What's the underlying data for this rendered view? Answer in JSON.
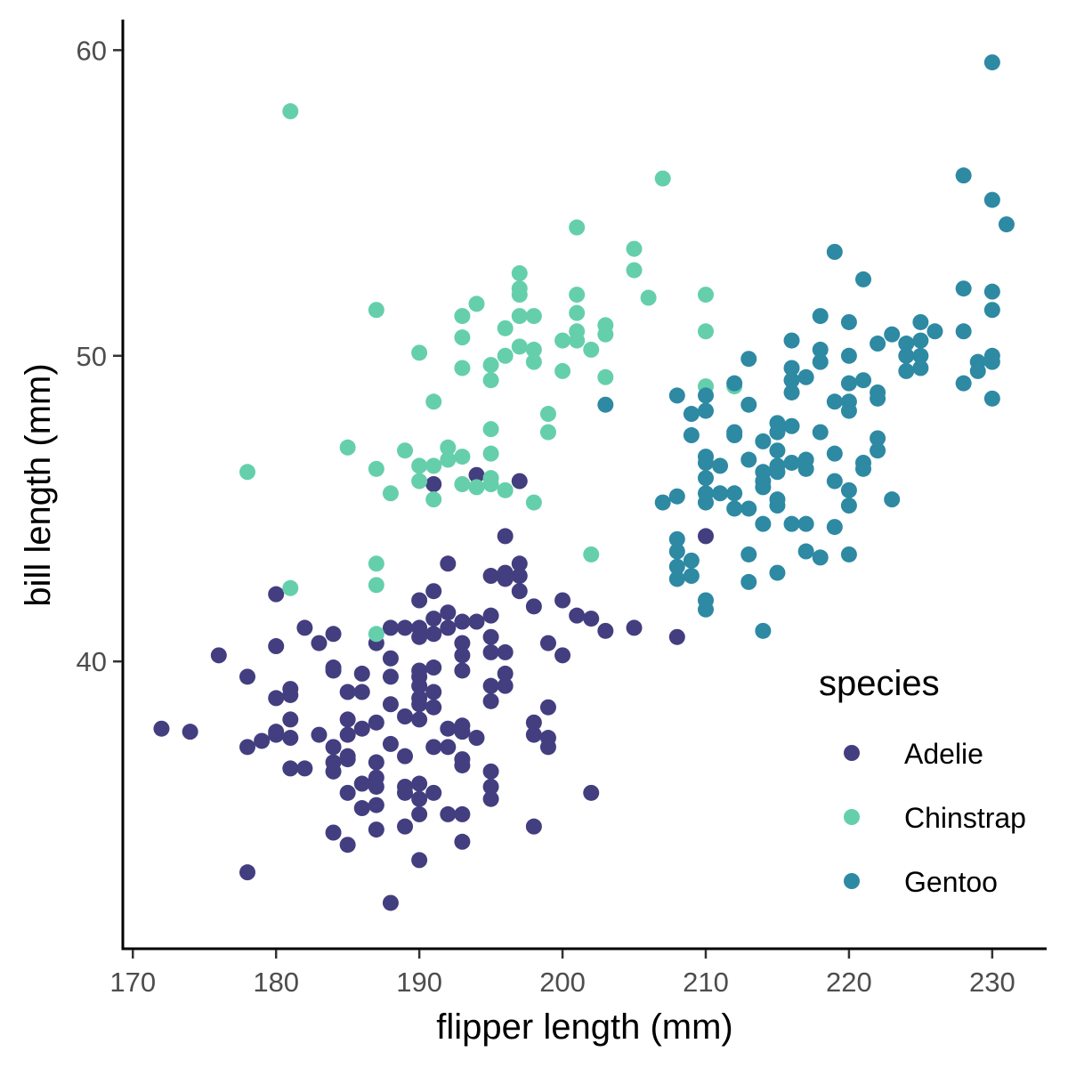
{
  "chart_data": {
    "type": "scatter",
    "xlabel": "flipper length (mm)",
    "ylabel": "bill length (mm)",
    "xlim": [
      169.3,
      233.8
    ],
    "ylim": [
      30.6,
      61.0
    ],
    "x_ticks": [
      170,
      180,
      190,
      200,
      210,
      220,
      230
    ],
    "y_ticks": [
      40,
      50,
      60
    ],
    "grid": false,
    "legend": {
      "title": "species",
      "placement": "right-inside-bottom"
    },
    "series": [
      {
        "name": "Adelie",
        "color": "#433e7f",
        "points": [
          [
            172,
            37.8
          ],
          [
            174,
            37.7
          ],
          [
            176,
            40.2
          ],
          [
            178,
            39.5
          ],
          [
            178,
            37.2
          ],
          [
            178,
            33.1
          ],
          [
            179,
            37.4
          ],
          [
            180,
            42.2
          ],
          [
            180,
            40.5
          ],
          [
            180,
            38.8
          ],
          [
            180,
            37.7
          ],
          [
            180,
            37.6
          ],
          [
            181,
            39.1
          ],
          [
            181,
            38.9
          ],
          [
            181,
            38.1
          ],
          [
            181,
            37.5
          ],
          [
            181,
            36.5
          ],
          [
            182,
            41.1
          ],
          [
            182,
            36.5
          ],
          [
            183,
            40.6
          ],
          [
            183,
            37.6
          ],
          [
            184,
            40.9
          ],
          [
            184,
            39.8
          ],
          [
            184,
            39.7
          ],
          [
            184,
            37.2
          ],
          [
            184,
            36.7
          ],
          [
            184,
            36.4
          ],
          [
            184,
            34.4
          ],
          [
            185,
            39.0
          ],
          [
            185,
            38.1
          ],
          [
            185,
            37.6
          ],
          [
            185,
            36.9
          ],
          [
            185,
            36.8
          ],
          [
            185,
            35.7
          ],
          [
            185,
            34.0
          ],
          [
            186,
            39.6
          ],
          [
            186,
            39.0
          ],
          [
            186,
            37.8
          ],
          [
            186,
            36.0
          ],
          [
            186,
            35.2
          ],
          [
            187,
            40.6
          ],
          [
            187,
            38.0
          ],
          [
            187,
            36.7
          ],
          [
            187,
            36.2
          ],
          [
            187,
            35.9
          ],
          [
            187,
            35.3
          ],
          [
            187,
            34.5
          ],
          [
            188,
            41.1
          ],
          [
            188,
            40.1
          ],
          [
            188,
            39.5
          ],
          [
            188,
            38.6
          ],
          [
            188,
            37.3
          ],
          [
            188,
            32.1
          ],
          [
            189,
            41.1
          ],
          [
            189,
            38.2
          ],
          [
            189,
            36.9
          ],
          [
            189,
            35.9
          ],
          [
            189,
            35.7
          ],
          [
            189,
            34.6
          ],
          [
            190,
            42.0
          ],
          [
            190,
            41.1
          ],
          [
            190,
            40.8
          ],
          [
            190,
            39.7
          ],
          [
            190,
            39.5
          ],
          [
            190,
            39.2
          ],
          [
            190,
            38.8
          ],
          [
            190,
            38.6
          ],
          [
            190,
            38.1
          ],
          [
            190,
            36.0
          ],
          [
            190,
            35.5
          ],
          [
            190,
            35.0
          ],
          [
            190,
            33.5
          ],
          [
            191,
            45.8
          ],
          [
            191,
            42.3
          ],
          [
            191,
            41.4
          ],
          [
            191,
            40.9
          ],
          [
            191,
            39.8
          ],
          [
            191,
            39.0
          ],
          [
            191,
            38.5
          ],
          [
            191,
            37.2
          ],
          [
            191,
            35.7
          ],
          [
            192,
            43.2
          ],
          [
            192,
            41.6
          ],
          [
            192,
            41.1
          ],
          [
            192,
            37.8
          ],
          [
            192,
            37.2
          ],
          [
            192,
            35.0
          ],
          [
            193,
            41.3
          ],
          [
            193,
            40.6
          ],
          [
            193,
            40.2
          ],
          [
            193,
            39.7
          ],
          [
            193,
            37.9
          ],
          [
            193,
            37.7
          ],
          [
            193,
            36.8
          ],
          [
            193,
            36.6
          ],
          [
            193,
            35.0
          ],
          [
            193,
            34.1
          ],
          [
            194,
            46.1
          ],
          [
            194,
            41.3
          ],
          [
            194,
            37.5
          ],
          [
            195,
            42.8
          ],
          [
            195,
            41.5
          ],
          [
            195,
            40.8
          ],
          [
            195,
            40.3
          ],
          [
            195,
            39.2
          ],
          [
            195,
            38.7
          ],
          [
            195,
            36.4
          ],
          [
            195,
            35.9
          ],
          [
            195,
            35.5
          ],
          [
            196,
            44.1
          ],
          [
            196,
            42.9
          ],
          [
            196,
            42.7
          ],
          [
            196,
            40.3
          ],
          [
            196,
            39.6
          ],
          [
            196,
            39.2
          ],
          [
            197,
            45.9
          ],
          [
            197,
            43.2
          ],
          [
            197,
            42.8
          ],
          [
            197,
            42.3
          ],
          [
            198,
            41.8
          ],
          [
            198,
            38.0
          ],
          [
            198,
            37.6
          ],
          [
            198,
            34.6
          ],
          [
            199,
            40.6
          ],
          [
            199,
            38.5
          ],
          [
            199,
            37.5
          ],
          [
            199,
            37.2
          ],
          [
            200,
            42.0
          ],
          [
            200,
            40.2
          ],
          [
            201,
            41.5
          ],
          [
            202,
            41.4
          ],
          [
            202,
            35.7
          ],
          [
            203,
            41.0
          ],
          [
            205,
            41.1
          ],
          [
            208,
            40.8
          ],
          [
            210,
            44.1
          ]
        ]
      },
      {
        "name": "Chinstrap",
        "color": "#65cfac",
        "points": [
          [
            178,
            46.2
          ],
          [
            181,
            58.0
          ],
          [
            181,
            42.4
          ],
          [
            185,
            47.0
          ],
          [
            187,
            51.5
          ],
          [
            187,
            46.3
          ],
          [
            187,
            43.2
          ],
          [
            187,
            42.5
          ],
          [
            187,
            40.9
          ],
          [
            188,
            45.5
          ],
          [
            189,
            46.9
          ],
          [
            190,
            50.1
          ],
          [
            190,
            46.4
          ],
          [
            190,
            45.9
          ],
          [
            191,
            48.5
          ],
          [
            191,
            46.4
          ],
          [
            191,
            45.3
          ],
          [
            192,
            47.0
          ],
          [
            192,
            46.6
          ],
          [
            193,
            51.3
          ],
          [
            193,
            50.6
          ],
          [
            193,
            49.6
          ],
          [
            193,
            46.7
          ],
          [
            193,
            45.8
          ],
          [
            194,
            51.7
          ],
          [
            194,
            45.7
          ],
          [
            195,
            49.7
          ],
          [
            195,
            49.2
          ],
          [
            195,
            47.6
          ],
          [
            195,
            46.8
          ],
          [
            195,
            46.0
          ],
          [
            195,
            45.8
          ],
          [
            196,
            50.9
          ],
          [
            196,
            50.0
          ],
          [
            196,
            45.6
          ],
          [
            197,
            52.7
          ],
          [
            197,
            52.2
          ],
          [
            197,
            52.0
          ],
          [
            197,
            51.3
          ],
          [
            197,
            50.3
          ],
          [
            198,
            51.3
          ],
          [
            198,
            50.2
          ],
          [
            198,
            49.8
          ],
          [
            198,
            45.2
          ],
          [
            199,
            48.1
          ],
          [
            199,
            47.5
          ],
          [
            200,
            50.5
          ],
          [
            200,
            49.5
          ],
          [
            201,
            54.2
          ],
          [
            201,
            52.0
          ],
          [
            201,
            51.4
          ],
          [
            201,
            50.8
          ],
          [
            201,
            50.5
          ],
          [
            202,
            50.2
          ],
          [
            202,
            43.5
          ],
          [
            203,
            51.0
          ],
          [
            203,
            50.7
          ],
          [
            203,
            49.3
          ],
          [
            205,
            53.5
          ],
          [
            205,
            52.8
          ],
          [
            206,
            51.9
          ],
          [
            207,
            55.8
          ],
          [
            210,
            52.0
          ],
          [
            210,
            50.8
          ],
          [
            210,
            49.0
          ],
          [
            212,
            49.0
          ]
        ]
      },
      {
        "name": "Gentoo",
        "color": "#2e89a3",
        "points": [
          [
            203,
            48.4
          ],
          [
            207,
            45.2
          ],
          [
            208,
            48.7
          ],
          [
            208,
            45.4
          ],
          [
            208,
            44.0
          ],
          [
            208,
            43.6
          ],
          [
            208,
            43.1
          ],
          [
            208,
            42.7
          ],
          [
            209,
            48.1
          ],
          [
            209,
            47.4
          ],
          [
            209,
            43.3
          ],
          [
            209,
            42.8
          ],
          [
            210,
            48.7
          ],
          [
            210,
            48.2
          ],
          [
            210,
            46.7
          ],
          [
            210,
            46.5
          ],
          [
            210,
            46.0
          ],
          [
            210,
            45.5
          ],
          [
            210,
            45.2
          ],
          [
            210,
            42.0
          ],
          [
            210,
            41.7
          ],
          [
            211,
            46.4
          ],
          [
            211,
            45.5
          ],
          [
            212,
            49.1
          ],
          [
            212,
            47.5
          ],
          [
            212,
            47.4
          ],
          [
            212,
            45.5
          ],
          [
            212,
            45.0
          ],
          [
            213,
            49.9
          ],
          [
            213,
            48.4
          ],
          [
            213,
            46.6
          ],
          [
            213,
            45.0
          ],
          [
            213,
            43.5
          ],
          [
            213,
            42.6
          ],
          [
            214,
            47.2
          ],
          [
            214,
            46.2
          ],
          [
            214,
            45.9
          ],
          [
            214,
            45.7
          ],
          [
            214,
            44.5
          ],
          [
            214,
            41.0
          ],
          [
            215,
            47.8
          ],
          [
            215,
            47.5
          ],
          [
            215,
            46.9
          ],
          [
            215,
            46.4
          ],
          [
            215,
            46.2
          ],
          [
            215,
            45.3
          ],
          [
            215,
            45.1
          ],
          [
            215,
            42.9
          ],
          [
            216,
            50.5
          ],
          [
            216,
            49.6
          ],
          [
            216,
            49.2
          ],
          [
            216,
            48.8
          ],
          [
            216,
            47.7
          ],
          [
            216,
            46.5
          ],
          [
            216,
            44.5
          ],
          [
            217,
            49.3
          ],
          [
            217,
            46.6
          ],
          [
            217,
            46.3
          ],
          [
            217,
            44.5
          ],
          [
            217,
            43.6
          ],
          [
            218,
            51.3
          ],
          [
            218,
            50.2
          ],
          [
            218,
            49.8
          ],
          [
            218,
            47.5
          ],
          [
            218,
            43.4
          ],
          [
            219,
            53.4
          ],
          [
            219,
            48.5
          ],
          [
            219,
            46.8
          ],
          [
            219,
            45.9
          ],
          [
            219,
            44.4
          ],
          [
            220,
            51.1
          ],
          [
            220,
            50.0
          ],
          [
            220,
            49.1
          ],
          [
            220,
            48.5
          ],
          [
            220,
            48.2
          ],
          [
            220,
            45.6
          ],
          [
            220,
            45.1
          ],
          [
            220,
            43.5
          ],
          [
            221,
            52.5
          ],
          [
            221,
            49.2
          ],
          [
            221,
            46.5
          ],
          [
            221,
            46.3
          ],
          [
            222,
            50.4
          ],
          [
            222,
            48.8
          ],
          [
            222,
            48.6
          ],
          [
            222,
            47.3
          ],
          [
            222,
            46.9
          ],
          [
            223,
            50.7
          ],
          [
            223,
            45.3
          ],
          [
            224,
            50.4
          ],
          [
            224,
            50.0
          ],
          [
            224,
            49.5
          ],
          [
            225,
            51.1
          ],
          [
            225,
            50.5
          ],
          [
            225,
            50.0
          ],
          [
            225,
            49.6
          ],
          [
            226,
            50.8
          ],
          [
            228,
            55.9
          ],
          [
            228,
            52.2
          ],
          [
            228,
            50.8
          ],
          [
            228,
            49.1
          ],
          [
            229,
            49.8
          ],
          [
            229,
            49.5
          ],
          [
            230,
            59.6
          ],
          [
            230,
            55.1
          ],
          [
            230,
            52.1
          ],
          [
            230,
            51.5
          ],
          [
            230,
            50.0
          ],
          [
            230,
            49.8
          ],
          [
            230,
            48.6
          ],
          [
            231,
            54.3
          ]
        ]
      }
    ]
  }
}
